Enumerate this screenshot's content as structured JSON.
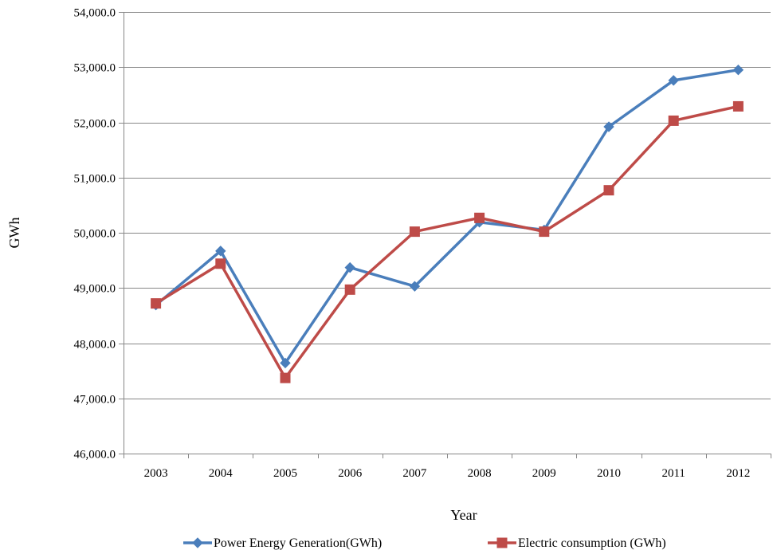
{
  "chart_data": {
    "type": "line",
    "title": "",
    "xlabel": "Year",
    "ylabel": "GWh",
    "categories": [
      "2003",
      "2004",
      "2005",
      "2006",
      "2007",
      "2008",
      "2009",
      "2010",
      "2011",
      "2012"
    ],
    "ylim": [
      46000,
      54000
    ],
    "yticks": [
      46000,
      47000,
      48000,
      49000,
      50000,
      51000,
      52000,
      53000,
      54000
    ],
    "ytick_labels": [
      "46,000.0",
      "47,000.0",
      "48,000.0",
      "49,000.0",
      "50,000.0",
      "51,000.0",
      "52,000.0",
      "53,000.0",
      "54,000.0"
    ],
    "grid": "horizontal",
    "legend_position": "bottom",
    "series": [
      {
        "name": "Power Energy Generation(GWh)",
        "color": "#4A7EBB",
        "marker": "diamond",
        "values": [
          48690,
          49670,
          47640,
          49370,
          49030,
          50190,
          50050,
          51920,
          52760,
          52950
        ]
      },
      {
        "name": "Electric consumption (GWh)",
        "color": "#BE4B48",
        "marker": "square",
        "values": [
          48720,
          49440,
          47370,
          48970,
          50020,
          50270,
          50020,
          50770,
          52030,
          52290
        ]
      }
    ]
  }
}
